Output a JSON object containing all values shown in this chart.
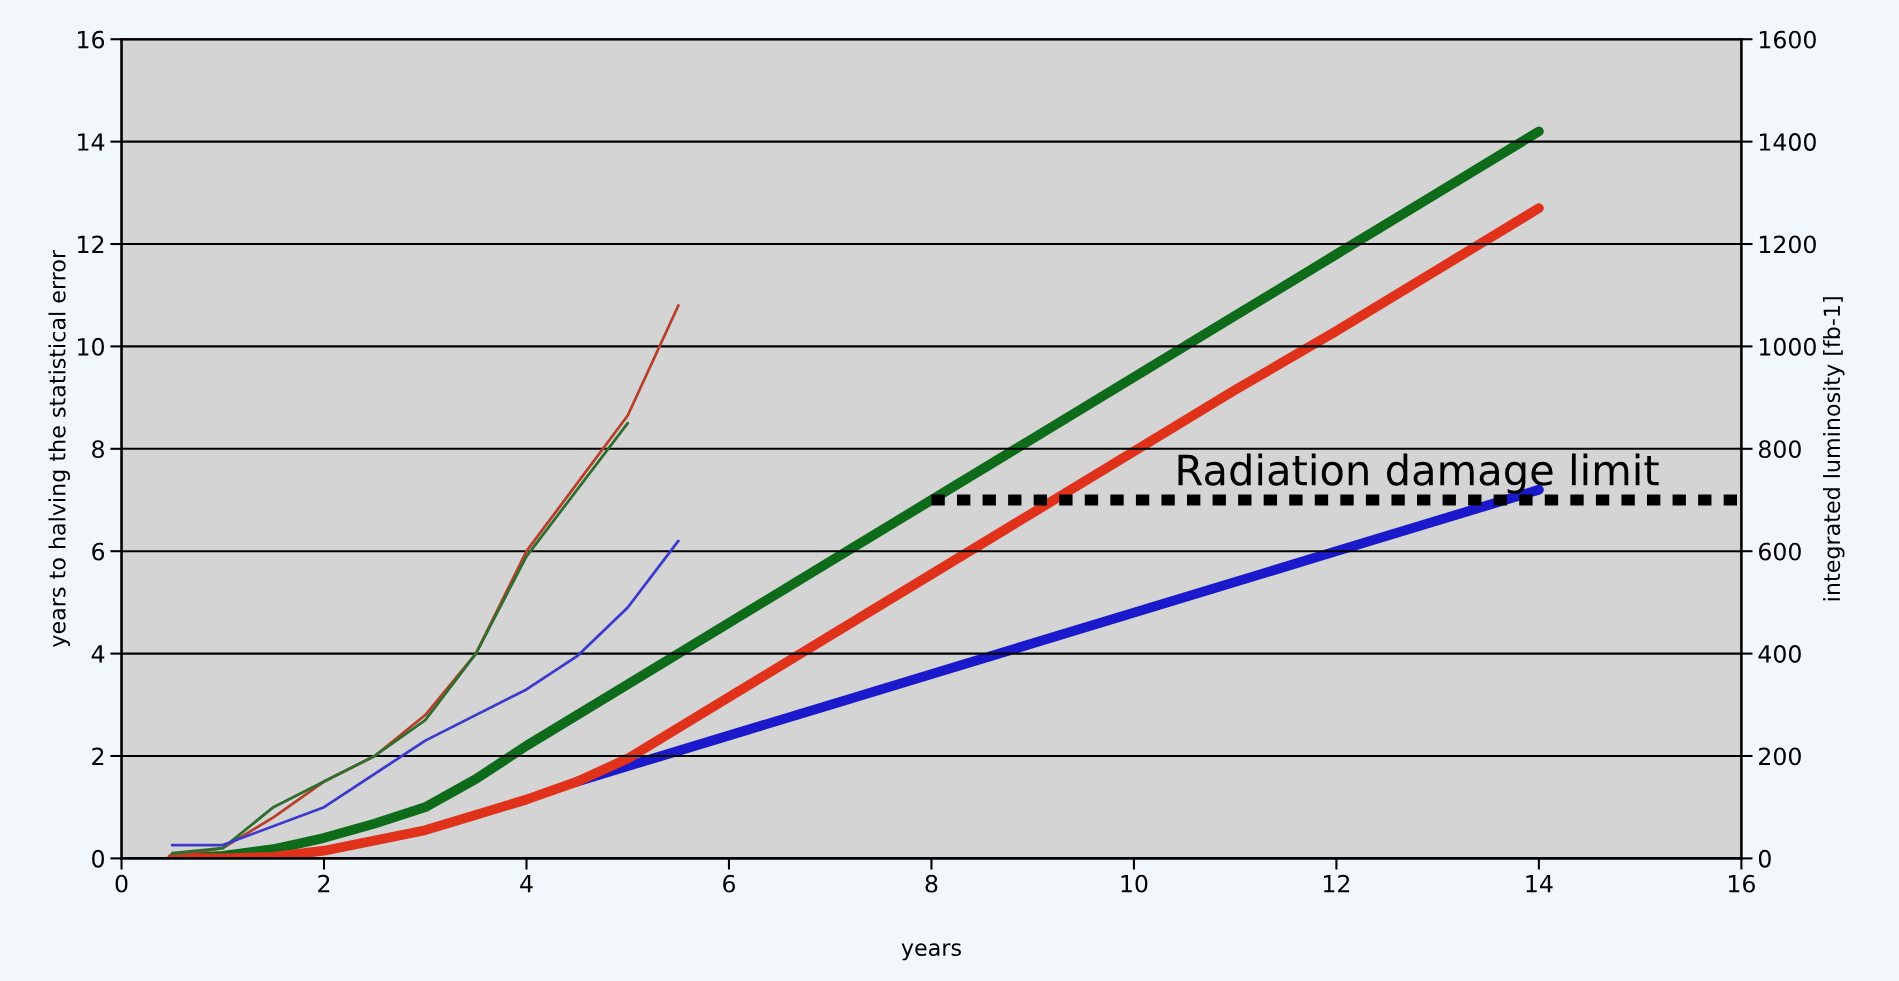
{
  "chart_data": {
    "type": "line",
    "xlabel": "years",
    "ylabel": "years to halving the statistical error",
    "y2label": "integrated luminosity [fb-1]",
    "xlim": [
      0,
      16
    ],
    "xticks": [
      0,
      2,
      4,
      6,
      8,
      10,
      12,
      14,
      16
    ],
    "ylim": [
      0,
      16
    ],
    "yticks": [
      0,
      2,
      4,
      6,
      8,
      10,
      12,
      14,
      16
    ],
    "y2lim": [
      0,
      1600
    ],
    "y2ticks": [
      0,
      200,
      400,
      600,
      800,
      1000,
      1200,
      1400,
      1600
    ],
    "grid": "y",
    "marker": "none",
    "series": [
      {
        "color": "#0d6b1a",
        "axis": "y2",
        "x": [
          0.5,
          1,
          1.5,
          2,
          2.5,
          3,
          3.5,
          4,
          5,
          6,
          7,
          8,
          9,
          10,
          11,
          12,
          13,
          14
        ],
        "values": [
          0,
          5,
          18,
          40,
          68,
          100,
          155,
          220,
          340,
          460,
          580,
          700,
          820,
          940,
          1060,
          1180,
          1300,
          1420
        ]
      },
      {
        "color": "#1a1acc",
        "axis": "y2",
        "x": [
          4.5,
          5,
          6,
          7,
          8,
          10,
          12,
          14
        ],
        "values": [
          150,
          180,
          240,
          300,
          360,
          480,
          600,
          720
        ]
      },
      {
        "color": "#e0321a",
        "axis": "y2",
        "x": [
          0.5,
          1,
          1.5,
          2,
          2.5,
          3,
          3.5,
          4,
          4.5,
          5,
          6,
          7,
          8,
          9,
          10,
          11,
          12,
          13,
          14
        ],
        "values": [
          0,
          0,
          3,
          15,
          35,
          55,
          85,
          115,
          150,
          195,
          315,
          435,
          555,
          675,
          795,
          915,
          1030,
          1150,
          1270
        ]
      },
      {
        "color": "#b8402a",
        "x": [
          0.5,
          1,
          1.5,
          2,
          2.5,
          3,
          3.5,
          4,
          5,
          5.5
        ],
        "values": [
          0.05,
          0.2,
          0.8,
          1.5,
          2.0,
          2.8,
          4.0,
          6.0,
          8.65,
          10.8
        ]
      },
      {
        "color": "#2e6e2e",
        "x": [
          0.5,
          1,
          1.5,
          2,
          2.5,
          3,
          3.5,
          4,
          5
        ],
        "values": [
          0.1,
          0.2,
          1.0,
          1.5,
          2.0,
          2.7,
          4.0,
          5.9,
          8.5
        ]
      },
      {
        "color": "#3a3acc",
        "x": [
          0.5,
          1,
          2,
          3,
          4,
          4.5,
          5,
          5.5
        ],
        "values": [
          0.26,
          0.26,
          1.0,
          2.3,
          3.3,
          3.95,
          4.9,
          6.2
        ]
      },
      {
        "color": "#000000",
        "axis": "y2",
        "line_style": "dotted",
        "x": [
          8,
          16
        ],
        "values": [
          700,
          700
        ]
      }
    ],
    "annotations": [
      "Radiation damage limit"
    ]
  }
}
